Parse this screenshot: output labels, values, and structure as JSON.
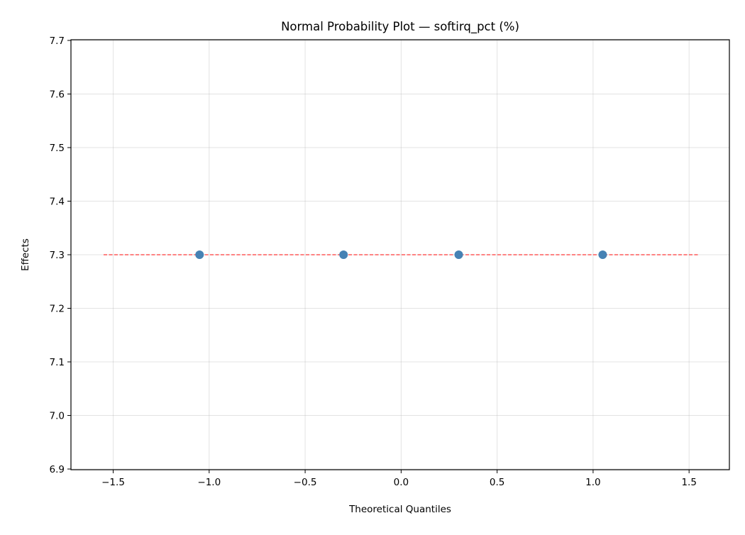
{
  "chart_data": {
    "type": "scatter",
    "title": "Normal Probability Plot — softirq_pct (%)",
    "xlabel": "Theoretical Quantiles",
    "ylabel": "Effects",
    "xlim": [
      -1.72,
      1.71
    ],
    "ylim": [
      6.9,
      7.7
    ],
    "xticks": [
      -1.5,
      -1.0,
      -0.5,
      0.0,
      0.5,
      1.0,
      1.5
    ],
    "xtick_labels": [
      "−1.5",
      "−1.0",
      "−0.5",
      "0.0",
      "0.5",
      "1.0",
      "1.5"
    ],
    "yticks": [
      6.9,
      7.0,
      7.1,
      7.2,
      7.3,
      7.4,
      7.5,
      7.6,
      7.7
    ],
    "ytick_labels": [
      "6.9",
      "7.0",
      "7.1",
      "7.2",
      "7.3",
      "7.4",
      "7.5",
      "7.6",
      "7.7"
    ],
    "grid": true,
    "points": {
      "x": [
        -1.05,
        -0.3,
        0.3,
        1.05
      ],
      "y": [
        7.3,
        7.3,
        7.3,
        7.3
      ],
      "color": "#4682b4"
    },
    "reference_line": {
      "x": [
        -1.55,
        1.55
      ],
      "y": [
        7.3,
        7.3
      ],
      "style": "dashed",
      "color": "#ff5a5a"
    }
  }
}
